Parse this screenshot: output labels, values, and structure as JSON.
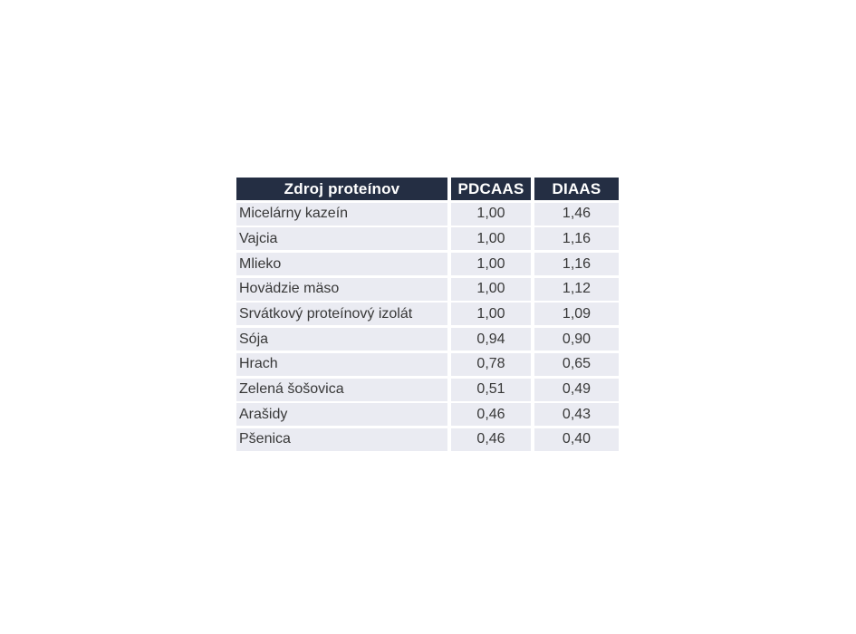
{
  "page": {
    "background_color": "#ffffff"
  },
  "colors": {
    "header_bg": "#242e43",
    "header_text": "#ffffff",
    "row_bg": "#eaebf2",
    "row_text": "#383838",
    "separator": "#ffffff"
  },
  "chart_data": {
    "type": "table",
    "title": "",
    "columns": [
      "Zdroj proteínov",
      "PDCAAS",
      "DIAAS"
    ],
    "rows": [
      {
        "source": "Micelárny kazeín",
        "pdcaas": "1,00",
        "diaas": "1,46"
      },
      {
        "source": "Vajcia",
        "pdcaas": "1,00",
        "diaas": "1,16"
      },
      {
        "source": "Mlieko",
        "pdcaas": "1,00",
        "diaas": "1,16"
      },
      {
        "source": "Hovädzie mäso",
        "pdcaas": "1,00",
        "diaas": "1,12"
      },
      {
        "source": "Srvátkový proteínový izolát",
        "pdcaas": "1,00",
        "diaas": "1,09"
      },
      {
        "source": "Sója",
        "pdcaas": "0,94",
        "diaas": "0,90"
      },
      {
        "source": "Hrach",
        "pdcaas": "0,78",
        "diaas": "0,65"
      },
      {
        "source": "Zelená šošovica",
        "pdcaas": "0,51",
        "diaas": "0,49"
      },
      {
        "source": "Arašidy",
        "pdcaas": "0,46",
        "diaas": "0,43"
      },
      {
        "source": "Pšenica",
        "pdcaas": "0,46",
        "diaas": "0,40"
      }
    ],
    "series": [
      {
        "name": "PDCAAS",
        "values": [
          1.0,
          1.0,
          1.0,
          1.0,
          1.0,
          0.94,
          0.78,
          0.51,
          0.46,
          0.46
        ]
      },
      {
        "name": "DIAAS",
        "values": [
          1.46,
          1.16,
          1.16,
          1.12,
          1.09,
          0.9,
          0.65,
          0.49,
          0.43,
          0.4
        ]
      }
    ]
  }
}
